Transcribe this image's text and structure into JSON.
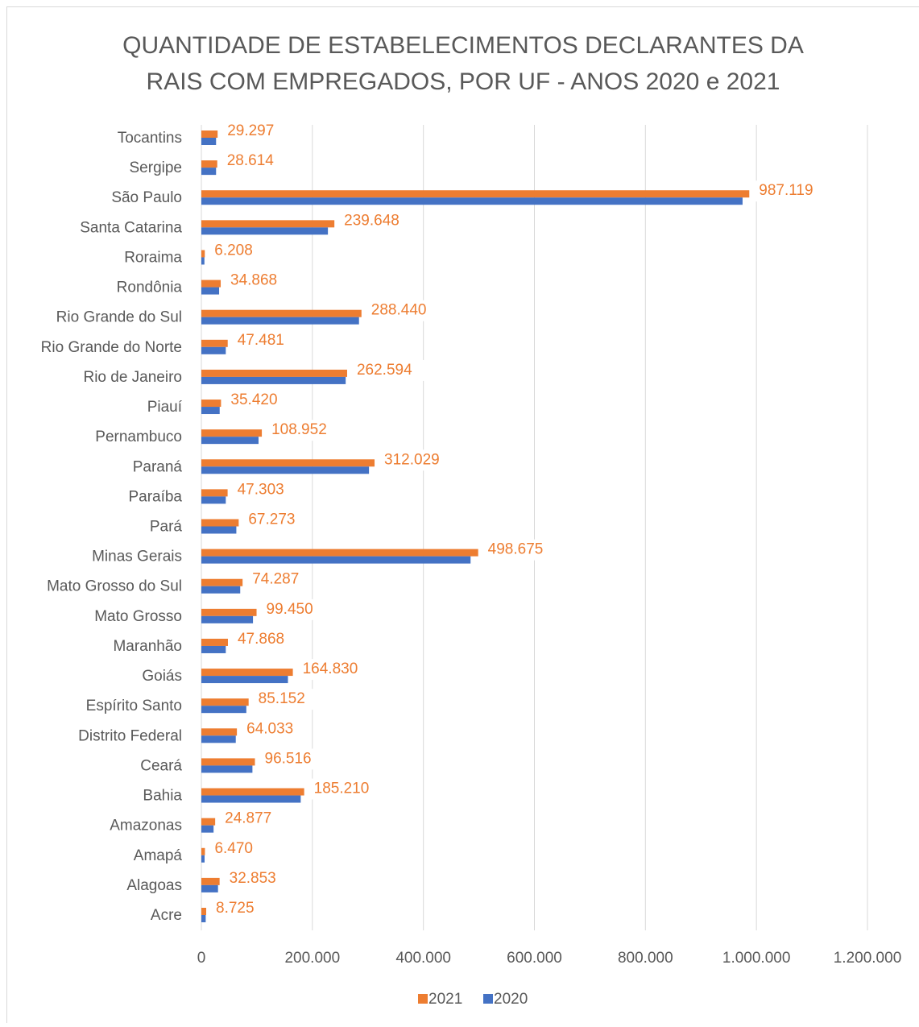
{
  "chart_data": {
    "type": "bar",
    "orientation": "horizontal",
    "title": "QUANTIDADE DE ESTABELECIMENTOS DECLARANTES DA RAIS COM EMPREGADOS, POR UF - ANOS 2020 e 2021",
    "categories": [
      "Tocantins",
      "Sergipe",
      "São Paulo",
      "Santa Catarina",
      "Roraima",
      "Rondônia",
      "Rio Grande do Sul",
      "Rio Grande do Norte",
      "Rio de Janeiro",
      "Piauí",
      "Pernambuco",
      "Paraná",
      "Paraíba",
      "Pará",
      "Minas Gerais",
      "Mato Grosso do Sul",
      "Mato Grosso",
      "Maranhão",
      "Goiás",
      "Espírito Santo",
      "Distrito Federal",
      "Ceará",
      "Bahia",
      "Amazonas",
      "Amapá",
      "Alagoas",
      "Acre"
    ],
    "series": [
      {
        "name": "2021",
        "color": "#ed7d31",
        "values": [
          29297,
          28614,
          987119,
          239648,
          6208,
          34868,
          288440,
          47481,
          262594,
          35420,
          108952,
          312029,
          47303,
          67273,
          498675,
          74287,
          99450,
          47868,
          164830,
          85152,
          64033,
          96516,
          185210,
          24877,
          6470,
          32853,
          8725
        ],
        "value_labels": [
          "29.297",
          "28.614",
          "987.119",
          "239.648",
          "6.208",
          "34.868",
          "288.440",
          "47.481",
          "262.594",
          "35.420",
          "108.952",
          "312.029",
          "47.303",
          "67.273",
          "498.675",
          "74.287",
          "99.450",
          "47.868",
          "164.830",
          "85.152",
          "64.033",
          "96.516",
          "185.210",
          "24.877",
          "6.470",
          "32.853",
          "8.725"
        ]
      },
      {
        "name": "2020",
        "color": "#4472c4",
        "values": [
          26500,
          26500,
          975000,
          228000,
          5500,
          32000,
          284000,
          44000,
          260000,
          33000,
          103000,
          302000,
          44000,
          63000,
          485000,
          70000,
          93000,
          44000,
          156000,
          81000,
          62000,
          92000,
          179000,
          22000,
          5800,
          30000,
          7800
        ]
      }
    ],
    "xlim": [
      0,
      1200000
    ],
    "xticks": [
      0,
      {
        "value": 200000,
        "label": "200.000"
      },
      {
        "value": 400000,
        "label": "400.000"
      },
      {
        "value": 600000,
        "label": "600.000"
      },
      {
        "value": 800000,
        "label": "800.000"
      },
      {
        "value": 1000000,
        "label": "1.000.000"
      },
      {
        "value": 1200000,
        "label": "1.200.000"
      }
    ],
    "grid": true,
    "legend": "bottom"
  }
}
